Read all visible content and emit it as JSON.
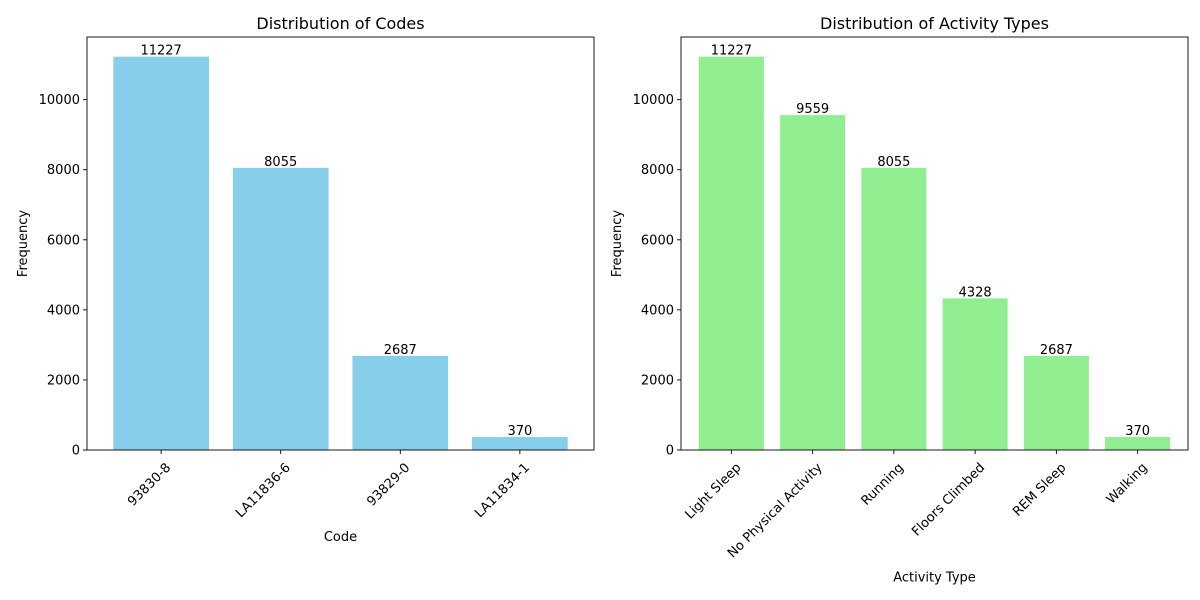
{
  "chart_data": [
    {
      "type": "bar",
      "title": "Distribution of Codes",
      "xlabel": "Code",
      "ylabel": "Frequency",
      "categories": [
        "93830-8",
        "LA11836-6",
        "93829-0",
        "LA11834-1"
      ],
      "values": [
        11227,
        8055,
        2687,
        370
      ],
      "ylim": [
        0,
        11789
      ],
      "yticks": [
        0,
        2000,
        4000,
        6000,
        8000,
        10000
      ],
      "bar_color": "#87ceeb",
      "grid": false,
      "tick_label_rotation": 45
    },
    {
      "type": "bar",
      "title": "Distribution of Activity Types",
      "xlabel": "Activity Type",
      "ylabel": "Frequency",
      "categories": [
        "Light Sleep",
        "No Physical Activity",
        "Running",
        "Floors Climbed",
        "REM Sleep",
        "Walking"
      ],
      "values": [
        11227,
        9559,
        8055,
        4328,
        2687,
        370
      ],
      "ylim": [
        0,
        11789
      ],
      "yticks": [
        0,
        2000,
        4000,
        6000,
        8000,
        10000
      ],
      "bar_color": "#90ee90",
      "grid": false,
      "tick_label_rotation": 45
    }
  ]
}
